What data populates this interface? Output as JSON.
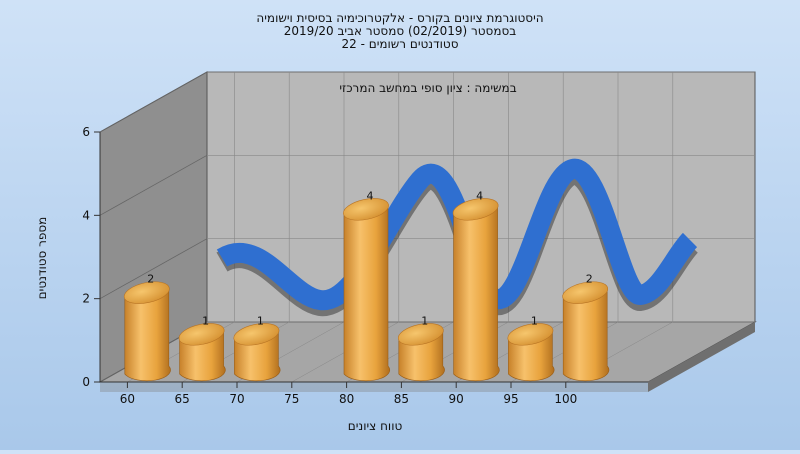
{
  "chart_data": {
    "type": "bar",
    "title_lines": [
      "היסטוגרמת ציונים בקורס - אלקטרוכימיה בסיסית וישומיה",
      "בסמסטר  (02/2019)  סמסטר אביב 2019/20",
      "סטודנטים רשומים - 22"
    ],
    "subtitle": "במשימה : ציון סופי במחשב המרכזי",
    "xlabel": "טווח ציונים",
    "ylabel": "מספר סטודנטים",
    "ylim": [
      0,
      6
    ],
    "yticks": [
      0,
      2,
      4,
      6
    ],
    "x_tick_labels": [
      "60",
      "65",
      "70",
      "75",
      "80",
      "85",
      "90",
      "95",
      "100"
    ],
    "bins": [
      62.5,
      67.5,
      72.5,
      77.5,
      82.5,
      87.5,
      92.5,
      97.5,
      102.5
    ],
    "values": [
      2,
      1,
      1,
      0,
      4,
      1,
      4,
      1,
      2
    ],
    "data_labels": [
      "2",
      "1",
      "1",
      "",
      "4",
      "1",
      "4",
      "1",
      "2"
    ],
    "bar_color": "#e8a33d",
    "curve_color": "#2f6fd0",
    "grid": true
  }
}
